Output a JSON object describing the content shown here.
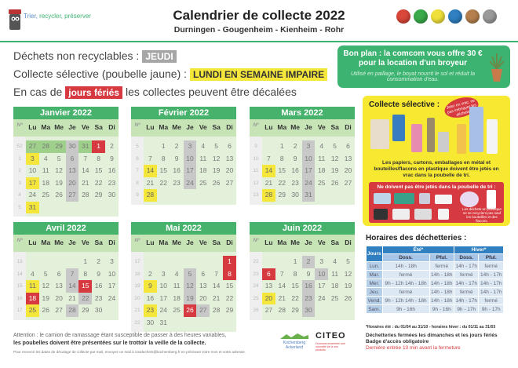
{
  "header": {
    "tagline_prefix": "Trier, ",
    "tagline_rest": "recycler, préserver",
    "title": "Calendrier de collecte 2022",
    "subtitle": "Durningen - Gougenheim - Kienheim - Rohr",
    "ball_colors": [
      "#d9473a",
      "#3aaa4a",
      "#f0e03a",
      "#2f7fc1",
      "#b5804e",
      "#9a9a9a"
    ]
  },
  "info": {
    "line1_text": "Déchets non recyclables :",
    "line1_tag": "JEUDI",
    "line2_text": "Collecte sélective (poubelle jaune) :",
    "line2_tag": "LUNDI EN SEMAINE IMPAIRE",
    "line3_pre": "En cas de",
    "line3_tag": "jours fériés",
    "line3_post": "les collectes peuvent être décalées"
  },
  "colors": {
    "gray": "#c8c8c8",
    "yellow": "#f4e63a",
    "red": "#d6393f",
    "green": "#46b26b"
  },
  "bonplan": {
    "title": "Bon plan : la comcom vous offre 30 € pour la location d'un broyeur",
    "text": "Utilisé en paillage, le boyat nourrit le sol et réduit la consommation d'eau."
  },
  "day_headers": [
    "Nº",
    "Lu",
    "Ma",
    "Me",
    "Je",
    "Ve",
    "Sa",
    "Di"
  ],
  "months": [
    {
      "name": "Janvier 2022",
      "weeks": [
        [
          "52",
          "27",
          "28",
          "29",
          "30",
          "31",
          "1",
          "2"
        ],
        [
          "1",
          "3",
          "4",
          "5",
          "6",
          "7",
          "8",
          "9"
        ],
        [
          "2",
          "10",
          "11",
          "12",
          "13",
          "14",
          "15",
          "16"
        ],
        [
          "3",
          "17",
          "18",
          "19",
          "20",
          "21",
          "22",
          "23"
        ],
        [
          "4",
          "24",
          "25",
          "26",
          "27",
          "28",
          "29",
          "30"
        ],
        [
          "5",
          "31",
          "",
          "",
          "",
          "",
          "",
          ""
        ]
      ],
      "prev": [
        "27",
        "28",
        "29",
        "31"
      ],
      "gray": [
        "30",
        "6",
        "13",
        "20",
        "27"
      ],
      "yellow": [
        "3",
        "17",
        "31"
      ],
      "red": [
        "1"
      ]
    },
    {
      "name": "Février 2022",
      "weeks": [
        [
          "5",
          "",
          "1",
          "2",
          "3",
          "4",
          "5",
          "6"
        ],
        [
          "6",
          "7",
          "8",
          "9",
          "10",
          "11",
          "12",
          "13"
        ],
        [
          "7",
          "14",
          "15",
          "16",
          "17",
          "18",
          "19",
          "20"
        ],
        [
          "8",
          "21",
          "22",
          "23",
          "24",
          "25",
          "26",
          "27"
        ],
        [
          "9",
          "28",
          "",
          "",
          "",
          "",
          "",
          ""
        ]
      ],
      "prev": [],
      "gray": [
        "3",
        "10",
        "17",
        "24"
      ],
      "yellow": [
        "14",
        "28"
      ],
      "red": []
    },
    {
      "name": "Mars 2022",
      "weeks": [
        [
          "9",
          "",
          "1",
          "2",
          "3",
          "4",
          "5",
          "6"
        ],
        [
          "10",
          "7",
          "8",
          "9",
          "10",
          "11",
          "12",
          "13"
        ],
        [
          "11",
          "14",
          "15",
          "16",
          "17",
          "18",
          "19",
          "20"
        ],
        [
          "12",
          "21",
          "22",
          "23",
          "24",
          "25",
          "26",
          "27"
        ],
        [
          "13",
          "28",
          "29",
          "30",
          "31",
          "",
          "",
          ""
        ]
      ],
      "prev": [],
      "gray": [
        "3",
        "10",
        "17",
        "24",
        "31"
      ],
      "yellow": [
        "14",
        "28"
      ],
      "red": []
    },
    {
      "name": "Avril 2022",
      "weeks": [
        [
          "13",
          "",
          "",
          "",
          "",
          "1",
          "2",
          "3"
        ],
        [
          "14",
          "4",
          "5",
          "6",
          "7",
          "8",
          "9",
          "10"
        ],
        [
          "15",
          "11",
          "12",
          "13",
          "14",
          "15",
          "16",
          "17"
        ],
        [
          "16",
          "18",
          "19",
          "20",
          "21",
          "22",
          "23",
          "24"
        ],
        [
          "17",
          "25",
          "26",
          "27",
          "28",
          "29",
          "30",
          ""
        ]
      ],
      "prev": [],
      "gray": [
        "7",
        "14",
        "22",
        "28"
      ],
      "yellow": [
        "11",
        "25"
      ],
      "red": [
        "15",
        "18"
      ]
    },
    {
      "name": "Mai 2022",
      "weeks": [
        [
          "17",
          "",
          "",
          "",
          "",
          "",
          "",
          "1"
        ],
        [
          "18",
          "2",
          "3",
          "4",
          "5",
          "6",
          "7",
          "8"
        ],
        [
          "19",
          "9",
          "10",
          "11",
          "12",
          "13",
          "14",
          "15"
        ],
        [
          "20",
          "16",
          "17",
          "18",
          "19",
          "20",
          "21",
          "22"
        ],
        [
          "21",
          "23",
          "24",
          "25",
          "26",
          "27",
          "28",
          "29"
        ],
        [
          "22",
          "30",
          "31",
          "",
          "",
          "",
          "",
          ""
        ]
      ],
      "prev": [],
      "gray": [
        "5",
        "12",
        "19",
        "27"
      ],
      "yellow": [
        "9",
        "23"
      ],
      "red": [
        "1",
        "8",
        "26"
      ]
    },
    {
      "name": "Juin 2022",
      "weeks": [
        [
          "22",
          "",
          "",
          "1",
          "2",
          "3",
          "4",
          "5"
        ],
        [
          "23",
          "6",
          "7",
          "8",
          "9",
          "10",
          "11",
          "12"
        ],
        [
          "24",
          "13",
          "14",
          "15",
          "16",
          "17",
          "18",
          "19"
        ],
        [
          "25",
          "20",
          "21",
          "22",
          "23",
          "24",
          "25",
          "26"
        ],
        [
          "26",
          "27",
          "28",
          "29",
          "30",
          "",
          "",
          ""
        ]
      ],
      "prev": [],
      "gray": [
        "2",
        "10",
        "16",
        "23",
        "30"
      ],
      "yellow": [
        "7",
        "20"
      ],
      "red": [
        "6"
      ]
    }
  ],
  "selective": {
    "title": "Collecte sélective :",
    "bubble": "Jeter en vrac, ne pas imbriquer les déchets",
    "text": "Les papiers, cartons, emballages en métal et bouteilles/flacons en plastique doivent être jetés en vrac dans la poubelle de tri.",
    "forbidden_title": "Ne doivent pas être jetés dans la poubelle de tri :",
    "forbidden_note": "Les déchets en plastique ne se recyclent pas sauf les bouteilles et des flacons."
  },
  "dechetteries": {
    "title": "Horaires des déchetteries :",
    "col_jours": "Jours",
    "ete": "Été*",
    "hiver": "Hiver*",
    "sub": [
      "Doss.",
      "Pful.",
      "Doss.",
      "Pful."
    ],
    "rows": [
      [
        "Lun.",
        "14h - 18h",
        "fermé",
        "14h - 17h",
        "fermé"
      ],
      [
        "Mar.",
        "fermé",
        "14h - 18h",
        "fermé",
        "14h - 17h"
      ],
      [
        "Mer.",
        "9h - 12h 14h - 18h",
        "14h - 18h",
        "14h - 17h",
        "14h - 17h"
      ],
      [
        "Jeu.",
        "fermé",
        "14h - 18h",
        "fermé",
        "14h - 17h"
      ],
      [
        "Vend.",
        "9h - 12h 14h - 18h",
        "14h - 18h",
        "14h - 17h",
        "fermé"
      ],
      [
        "Sam.",
        "9h - 16h",
        "9h - 16h",
        "9h - 17h",
        "9h - 17h"
      ]
    ],
    "note": "*Horaires été : du 01/04 au 31/10 - horaires hiver : du 01/11 au 31/03",
    "closed": "Déchetteries fermées les dimanches et les jours fériés",
    "badge": "Badge d'accès obligatoire",
    "last_entry": "Dernière entrée 10 min avant la fermeture"
  },
  "footer": {
    "line1": "Attention : le camion de ramassage étant susceptible de passer à des heures variables,",
    "line2": "les poubelles doivent être présentées sur le trottoir la veille de la collecte.",
    "line3": "Pour recevoir les dates de décalage de collecte par mail, envoyez un mail à nosdechets@kochersberg.fr en précisant votre nom et votre adresse.",
    "koch_logo": "Kochersberg Ackerland",
    "citeo": "CITEO",
    "citeo_sub": "Donnons ensemble une nouvelle vie à nos produits"
  }
}
